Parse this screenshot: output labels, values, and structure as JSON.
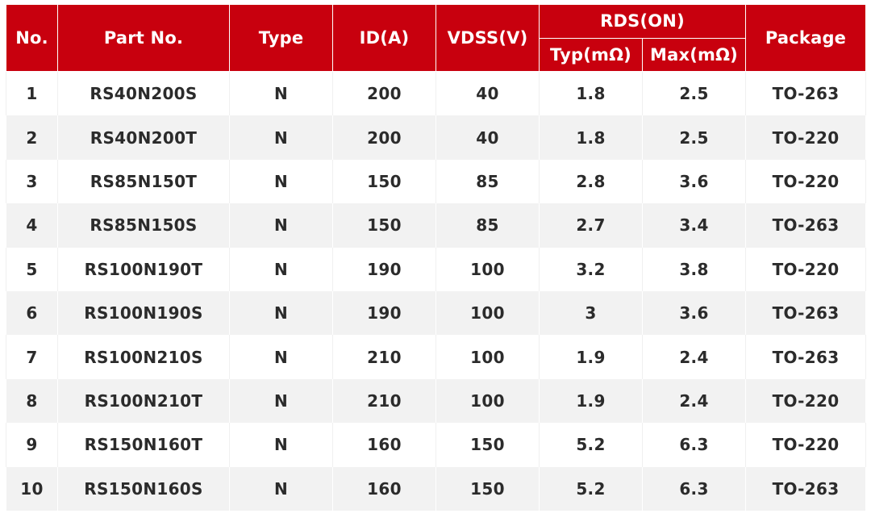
{
  "table": {
    "headers": {
      "no": "No.",
      "part_no": "Part No.",
      "type": "Type",
      "id": "ID(A)",
      "vdss": "VDSS(V)",
      "rds_on": "RDS(ON)",
      "typ": "Typ(mΩ)",
      "max": "Max(mΩ)",
      "package": "Package"
    },
    "rows": [
      {
        "no": "1",
        "part": "RS40N200S",
        "type": "N",
        "id": "200",
        "vdss": "40",
        "typ": "1.8",
        "max": "2.5",
        "package": "TO-263"
      },
      {
        "no": "2",
        "part": "RS40N200T",
        "type": "N",
        "id": "200",
        "vdss": "40",
        "typ": "1.8",
        "max": "2.5",
        "package": "TO-220"
      },
      {
        "no": "3",
        "part": "RS85N150T",
        "type": "N",
        "id": "150",
        "vdss": "85",
        "typ": "2.8",
        "max": "3.6",
        "package": "TO-220"
      },
      {
        "no": "4",
        "part": "RS85N150S",
        "type": "N",
        "id": "150",
        "vdss": "85",
        "typ": "2.7",
        "max": "3.4",
        "package": "TO-263"
      },
      {
        "no": "5",
        "part": "RS100N190T",
        "type": "N",
        "id": "190",
        "vdss": "100",
        "typ": "3.2",
        "max": "3.8",
        "package": "TO-220"
      },
      {
        "no": "6",
        "part": "RS100N190S",
        "type": "N",
        "id": "190",
        "vdss": "100",
        "typ": "3",
        "max": "3.6",
        "package": "TO-263"
      },
      {
        "no": "7",
        "part": "RS100N210S",
        "type": "N",
        "id": "210",
        "vdss": "100",
        "typ": "1.9",
        "max": "2.4",
        "package": "TO-263"
      },
      {
        "no": "8",
        "part": "RS100N210T",
        "type": "N",
        "id": "210",
        "vdss": "100",
        "typ": "1.9",
        "max": "2.4",
        "package": "TO-220"
      },
      {
        "no": "9",
        "part": "RS150N160T",
        "type": "N",
        "id": "160",
        "vdss": "150",
        "typ": "5.2",
        "max": "6.3",
        "package": "TO-220"
      },
      {
        "no": "10",
        "part": "RS150N160S",
        "type": "N",
        "id": "160",
        "vdss": "150",
        "typ": "5.2",
        "max": "6.3",
        "package": "TO-263"
      }
    ]
  },
  "colors": {
    "header_bg": "#c8000e",
    "header_text": "#ffffff",
    "row_alt_bg": "#f2f2f2",
    "body_text": "#2b2b2b"
  }
}
